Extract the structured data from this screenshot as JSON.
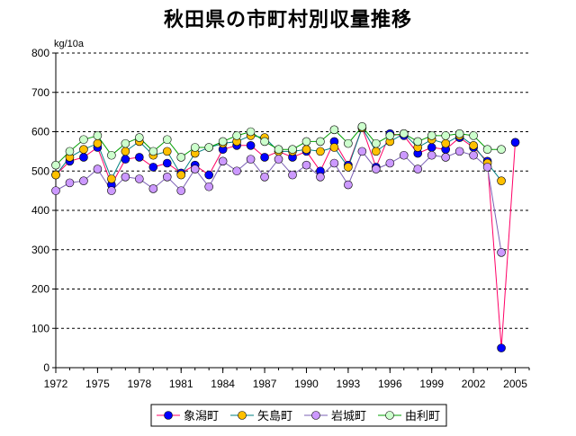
{
  "chart_data": {
    "type": "line",
    "title": "秋田県の市町村別収量推移",
    "ylabel": "kg/10a",
    "xlabel": "",
    "ylim": [
      0,
      800
    ],
    "yticks": [
      0,
      100,
      200,
      300,
      400,
      500,
      600,
      700,
      800
    ],
    "xlim": [
      1972,
      2006
    ],
    "xticks": [
      1972,
      1975,
      1978,
      1981,
      1984,
      1987,
      1990,
      1993,
      1996,
      1999,
      2002,
      2005
    ],
    "grid": "horizontal-dashed",
    "legend": "bottom",
    "x": [
      1972,
      1973,
      1974,
      1975,
      1976,
      1977,
      1978,
      1979,
      1980,
      1981,
      1982,
      1983,
      1984,
      1985,
      1986,
      1987,
      1988,
      1989,
      1990,
      1991,
      1992,
      1993,
      1994,
      1995,
      1996,
      1997,
      1998,
      1999,
      2000,
      2001,
      2002,
      2003,
      2004,
      2005
    ],
    "series": [
      {
        "name": "象潟町",
        "line_color": "#ff0066",
        "marker_color": "#0000ff",
        "values": [
          490,
          525,
          535,
          560,
          465,
          530,
          535,
          510,
          520,
          495,
          515,
          490,
          555,
          565,
          565,
          535,
          550,
          535,
          550,
          500,
          575,
          515,
          610,
          510,
          595,
          590,
          545,
          560,
          555,
          585,
          560,
          525,
          50,
          573
        ]
      },
      {
        "name": "矢島町",
        "line_color": "#008080",
        "marker_color": "#ffc000",
        "values": [
          490,
          535,
          555,
          570,
          480,
          550,
          575,
          540,
          550,
          490,
          545,
          560,
          570,
          575,
          590,
          585,
          550,
          550,
          555,
          550,
          560,
          510,
          610,
          550,
          575,
          595,
          560,
          580,
          570,
          590,
          565,
          520,
          475,
          null
        ]
      },
      {
        "name": "岩城町",
        "line_color": "#7b5fb5",
        "marker_color": "#cc99ff",
        "values": [
          450,
          470,
          475,
          505,
          450,
          485,
          480,
          455,
          485,
          450,
          505,
          460,
          525,
          500,
          530,
          485,
          530,
          490,
          515,
          485,
          520,
          465,
          550,
          505,
          520,
          540,
          505,
          540,
          535,
          550,
          540,
          510,
          293,
          null
        ]
      },
      {
        "name": "由利町",
        "line_color": "#00a000",
        "marker_color": "#ccffcc",
        "values": [
          515,
          550,
          580,
          590,
          540,
          570,
          585,
          550,
          580,
          535,
          560,
          560,
          575,
          590,
          600,
          575,
          555,
          555,
          575,
          575,
          605,
          570,
          613,
          570,
          590,
          595,
          575,
          590,
          590,
          595,
          590,
          555,
          555,
          null
        ]
      }
    ]
  }
}
